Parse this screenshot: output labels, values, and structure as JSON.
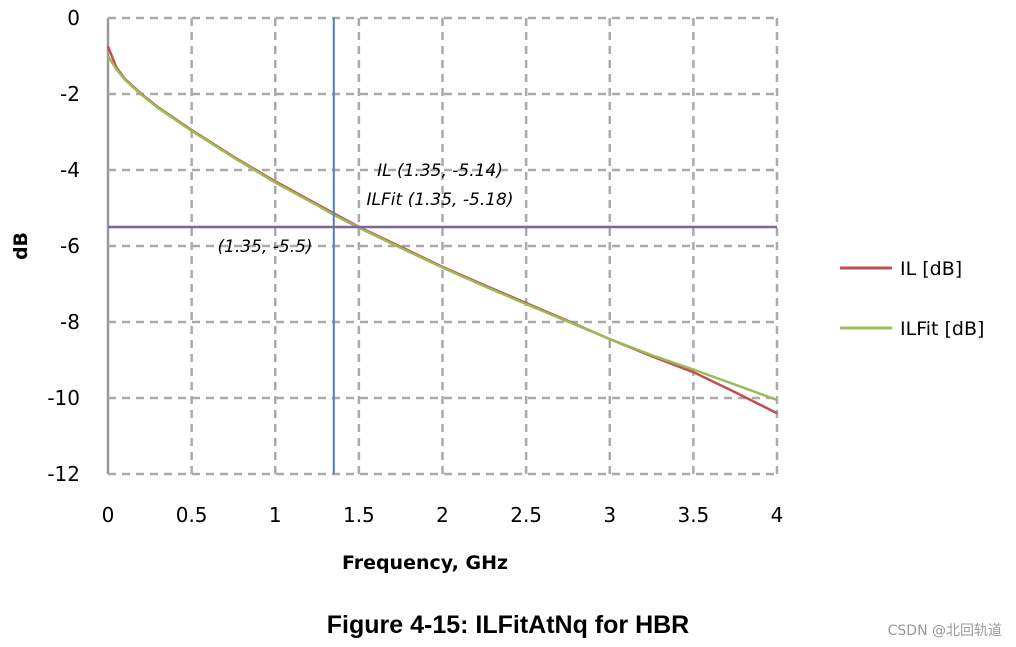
{
  "chart_data": {
    "type": "line",
    "xlabel": "Frequency, GHz",
    "ylabel": "dB",
    "xlim": [
      0,
      4
    ],
    "ylim": [
      -12,
      0
    ],
    "xticks": [
      "0",
      "0.5",
      "1",
      "1.5",
      "2",
      "2.5",
      "3",
      "3.5",
      "4"
    ],
    "yticks": [
      "0",
      "-2",
      "-4",
      "-6",
      "-8",
      "-10",
      "-12"
    ],
    "grid": true,
    "grid_style": "dashed",
    "legend_position": "right",
    "x": [
      0,
      0.05,
      0.1,
      0.2,
      0.3,
      0.5,
      0.75,
      1,
      1.25,
      1.35,
      1.5,
      1.75,
      2,
      2.25,
      2.5,
      2.75,
      3,
      3.25,
      3.5,
      3.75,
      4
    ],
    "series": [
      {
        "name": "IL [dB]",
        "color": "#c0504d",
        "values": [
          -0.75,
          -1.3,
          -1.6,
          -2.0,
          -2.35,
          -2.95,
          -3.65,
          -4.3,
          -4.9,
          -5.14,
          -5.5,
          -6.02,
          -6.55,
          -7.03,
          -7.5,
          -7.97,
          -8.45,
          -8.9,
          -9.32,
          -9.85,
          -10.4
        ]
      },
      {
        "name": "ILFit [dB]",
        "color": "#9bbb59",
        "values": [
          -1.0,
          -1.35,
          -1.62,
          -2.02,
          -2.37,
          -2.97,
          -3.67,
          -4.33,
          -4.93,
          -5.18,
          -5.52,
          -6.05,
          -6.57,
          -7.06,
          -7.53,
          -7.99,
          -8.45,
          -8.87,
          -9.25,
          -9.65,
          -10.05
        ]
      }
    ],
    "reference_lines": [
      {
        "orientation": "vertical",
        "value": 1.35,
        "color": "#4f81bd"
      },
      {
        "orientation": "horizontal",
        "value": -5.5,
        "color": "#8064a2"
      }
    ],
    "annotations": [
      "IL (1.35, -5.14)",
      "ILFit (1.35, -5.18)",
      "(1.35, -5.5)"
    ]
  },
  "caption": "Figure 4-15: ILFitAtNq for HBR",
  "watermark": "CSDN @北回轨道"
}
